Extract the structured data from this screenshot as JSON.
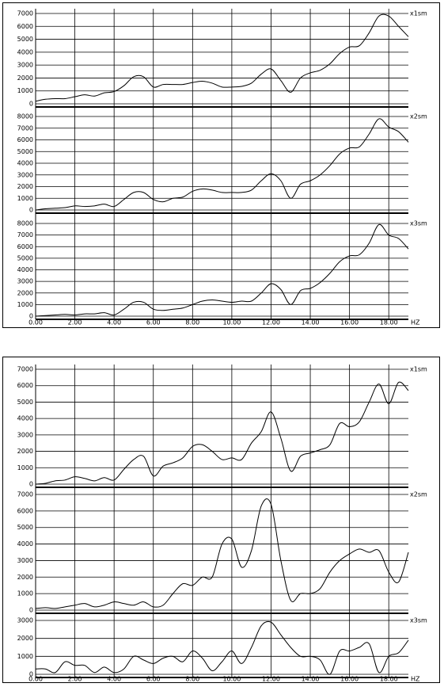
{
  "chart_data": [
    {
      "type": "line",
      "xlabel": "HZ",
      "x": [
        0,
        0.5,
        1,
        1.5,
        2,
        2.5,
        3,
        3.5,
        4,
        4.5,
        5,
        5.5,
        6,
        6.5,
        7,
        7.5,
        8,
        8.5,
        9,
        9.5,
        10,
        10.5,
        11,
        11.5,
        12,
        12.5,
        13,
        13.5,
        14,
        14.5,
        15,
        15.5,
        16,
        16.5,
        17,
        17.5,
        18,
        18.5,
        19
      ],
      "xlim": [
        0,
        19
      ],
      "xticks": [
        {
          "value": 0,
          "label": "0.00"
        },
        {
          "value": 2,
          "label": "2.00"
        },
        {
          "value": 4,
          "label": "4.00"
        },
        {
          "value": 6,
          "label": "6.00"
        },
        {
          "value": 8,
          "label": "8.00"
        },
        {
          "value": 10,
          "label": "10.00"
        },
        {
          "value": 12,
          "label": "12.00"
        },
        {
          "value": 14,
          "label": "14.00"
        },
        {
          "value": 16,
          "label": "16.00"
        },
        {
          "value": 18,
          "label": "18.00"
        }
      ],
      "grid": true,
      "series": [
        {
          "name": "x1sm",
          "color": "#000000",
          "ylim": [
            0,
            7000
          ],
          "yticks": [
            0,
            1000,
            2000,
            3000,
            4000,
            5000,
            6000,
            7000
          ],
          "values": [
            200,
            350,
            400,
            400,
            550,
            700,
            600,
            850,
            950,
            1400,
            2100,
            2100,
            1300,
            1500,
            1500,
            1500,
            1650,
            1750,
            1600,
            1300,
            1300,
            1350,
            1600,
            2300,
            2700,
            1800,
            900,
            2000,
            2400,
            2600,
            3100,
            3900,
            4400,
            4500,
            5500,
            6800,
            6800,
            6000,
            5200
          ]
        },
        {
          "name": "x2sm",
          "color": "#000000",
          "ylim": [
            0,
            8000
          ],
          "yticks": [
            0,
            1000,
            2000,
            3000,
            4000,
            5000,
            6000,
            7000,
            8000
          ],
          "values": [
            0,
            100,
            150,
            200,
            350,
            300,
            350,
            500,
            300,
            900,
            1500,
            1500,
            900,
            700,
            1000,
            1100,
            1600,
            1800,
            1700,
            1500,
            1500,
            1500,
            1700,
            2500,
            3100,
            2500,
            1000,
            2200,
            2500,
            3000,
            3800,
            4800,
            5300,
            5400,
            6500,
            7800,
            7100,
            6700,
            5800
          ]
        },
        {
          "name": "x3sm",
          "color": "#000000",
          "ylim": [
            0,
            8000
          ],
          "yticks": [
            0,
            1000,
            2000,
            3000,
            4000,
            5000,
            6000,
            7000,
            8000
          ],
          "values": [
            0,
            50,
            100,
            150,
            100,
            200,
            200,
            300,
            100,
            600,
            1200,
            1200,
            600,
            500,
            600,
            700,
            1000,
            1300,
            1400,
            1300,
            1200,
            1300,
            1300,
            2000,
            2800,
            2300,
            1000,
            2200,
            2400,
            2900,
            3700,
            4700,
            5200,
            5300,
            6300,
            7900,
            7000,
            6700,
            5800
          ]
        }
      ]
    },
    {
      "type": "line",
      "xlabel": "HZ",
      "x": [
        0,
        0.5,
        1,
        1.5,
        2,
        2.5,
        3,
        3.5,
        4,
        4.5,
        5,
        5.5,
        6,
        6.5,
        7,
        7.5,
        8,
        8.5,
        9,
        9.5,
        10,
        10.5,
        11,
        11.5,
        12,
        12.5,
        13,
        13.5,
        14,
        14.5,
        15,
        15.5,
        16,
        16.5,
        17,
        17.5,
        18,
        18.5,
        19
      ],
      "xlim": [
        0,
        19
      ],
      "xticks": [
        {
          "value": 0,
          "label": "0.00"
        },
        {
          "value": 2,
          "label": "2.00"
        },
        {
          "value": 4,
          "label": "4.00"
        },
        {
          "value": 6,
          "label": "6.00"
        },
        {
          "value": 8,
          "label": "8.00"
        },
        {
          "value": 10,
          "label": "10.00"
        },
        {
          "value": 12,
          "label": "12.00"
        },
        {
          "value": 14,
          "label": "14.00"
        },
        {
          "value": 16,
          "label": "16.00"
        },
        {
          "value": 18,
          "label": "18.00"
        }
      ],
      "grid": true,
      "series": [
        {
          "name": "x1sm",
          "color": "#000000",
          "ylim": [
            0,
            7000
          ],
          "yticks": [
            0,
            1000,
            2000,
            3000,
            4000,
            5000,
            6000,
            7000
          ],
          "values": [
            0,
            50,
            200,
            250,
            450,
            350,
            200,
            400,
            250,
            900,
            1500,
            1700,
            500,
            1100,
            1300,
            1600,
            2300,
            2400,
            2000,
            1500,
            1600,
            1500,
            2500,
            3200,
            4400,
            2800,
            800,
            1700,
            1900,
            2100,
            2400,
            3700,
            3500,
            3800,
            5000,
            6100,
            4900,
            6200,
            5700
          ]
        },
        {
          "name": "x2sm",
          "color": "#000000",
          "ylim": [
            0,
            7000
          ],
          "yticks": [
            0,
            1000,
            2000,
            3000,
            4000,
            5000,
            6000,
            7000
          ],
          "values": [
            100,
            150,
            100,
            200,
            300,
            400,
            200,
            300,
            500,
            400,
            300,
            500,
            200,
            300,
            1000,
            1600,
            1500,
            2000,
            2000,
            4000,
            4300,
            2600,
            3600,
            6300,
            6400,
            3000,
            600,
            1000,
            1000,
            1300,
            2300,
            3000,
            3400,
            3700,
            3500,
            3600,
            2300,
            1700,
            3500
          ]
        },
        {
          "name": "x3sm",
          "color": "#000000",
          "ylim": [
            0,
            3000
          ],
          "yticks": [
            0,
            1000,
            2000,
            3000
          ],
          "values": [
            300,
            300,
            100,
            700,
            500,
            500,
            100,
            400,
            100,
            300,
            1000,
            800,
            600,
            900,
            1000,
            700,
            1300,
            900,
            200,
            700,
            1300,
            600,
            1500,
            2700,
            2900,
            2200,
            1500,
            1000,
            1000,
            800,
            0,
            1300,
            1300,
            1500,
            1700,
            100,
            1000,
            1200,
            1900
          ]
        }
      ]
    }
  ]
}
